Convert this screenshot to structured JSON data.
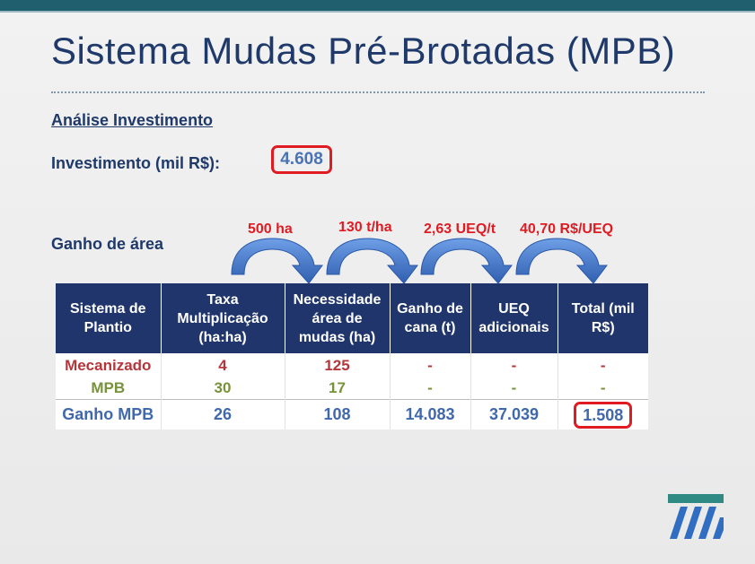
{
  "slide": {
    "title": "Sistema Mudas Pré-Brotadas (MPB)",
    "analysis_heading": "Análise Investimento",
    "investment_label": "Investimento (mil R$):",
    "investment_value": "4.608",
    "area_gain_label": "Ganho de área"
  },
  "arrow_labels": [
    "500 ha",
    "130 t/ha",
    "2,63 UEQ/t",
    "40,70 R$/UEQ"
  ],
  "table": {
    "headers": [
      [
        "Sistema de",
        "Plantio"
      ],
      [
        "Taxa",
        "Multiplicação",
        "(ha:ha)"
      ],
      [
        "Necessidade",
        "área de",
        "mudas (ha)"
      ],
      [
        "Ganho de",
        "cana (t)"
      ],
      [
        "UEQ",
        "adicionais"
      ],
      [
        "Total (mil",
        "R$)"
      ]
    ],
    "rows": [
      [
        "Mecanizado",
        "4",
        "125",
        "-",
        "-",
        "-"
      ],
      [
        "MPB",
        "30",
        "17",
        "-",
        "-",
        "-"
      ],
      [
        "Ganho MPB",
        "26",
        "108",
        "14.083",
        "37.039",
        "1.508"
      ]
    ]
  },
  "colors": {
    "title": "#1f3a6a",
    "table_header_bg": "#20356b",
    "highlight_border": "#e01b22",
    "mecanizado": "#b5363a",
    "mpb": "#77923a",
    "gain": "#3f68ad",
    "arrow_blue": "#4a7fd0"
  },
  "icons": [
    "curved-arrow-icon",
    "company-logo"
  ]
}
